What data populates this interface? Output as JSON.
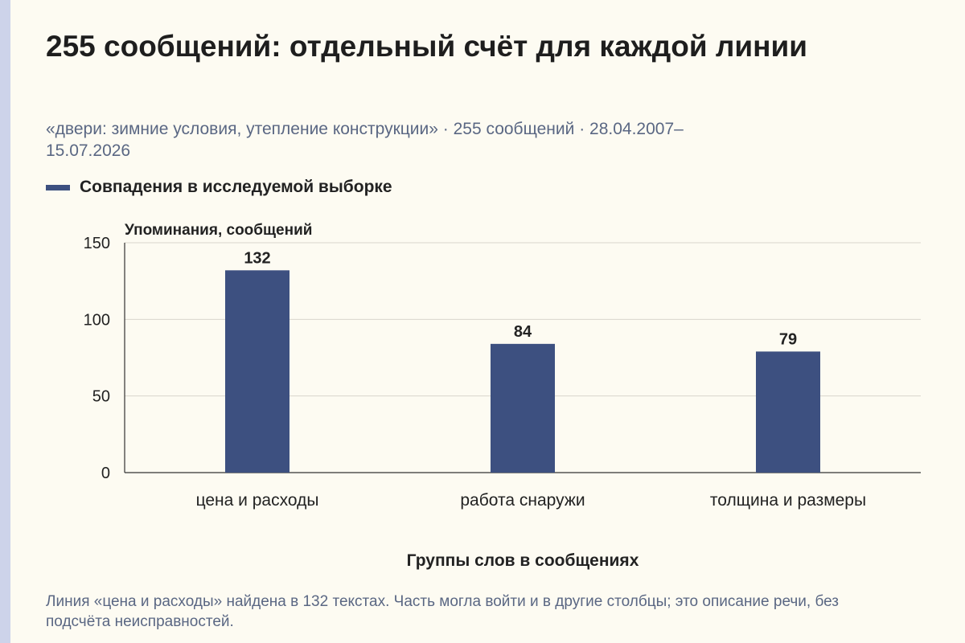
{
  "title": "255 сообщений: отдельный счёт для каждой линии",
  "subtitle": "«двери: зимние условия, утепление конструкции» · 255 сообщений · 28.04.2007–15.07.2026",
  "legend": {
    "label": "Совпадения в исследуемой выборке",
    "color": "#3d5080"
  },
  "footnote": "Линия «цена и расходы» найдена в 132 текстах. Часть могла войти и в другие столбцы; это описание речи, без подсчёта неисправностей.",
  "colors": {
    "accent_strip": "#cdd3ea",
    "background": "#fdfbf2",
    "bar": "#3d5080"
  },
  "chart_data": {
    "type": "bar",
    "categories": [
      "цена и расходы",
      "работа снаружи",
      "толщина и размеры"
    ],
    "values": [
      132,
      84,
      79
    ],
    "data_labels": [
      "132",
      "84",
      "79"
    ],
    "series": [
      {
        "name": "Совпадения в исследуемой выборке",
        "values": [
          132,
          84,
          79
        ]
      }
    ],
    "ylabel": "Упоминания, сообщений",
    "xlabel": "Группы слов в сообщениях",
    "ylim": [
      0,
      150
    ],
    "yticks": [
      0,
      50,
      100,
      150
    ],
    "grid": true,
    "legend_position": "top-left"
  }
}
